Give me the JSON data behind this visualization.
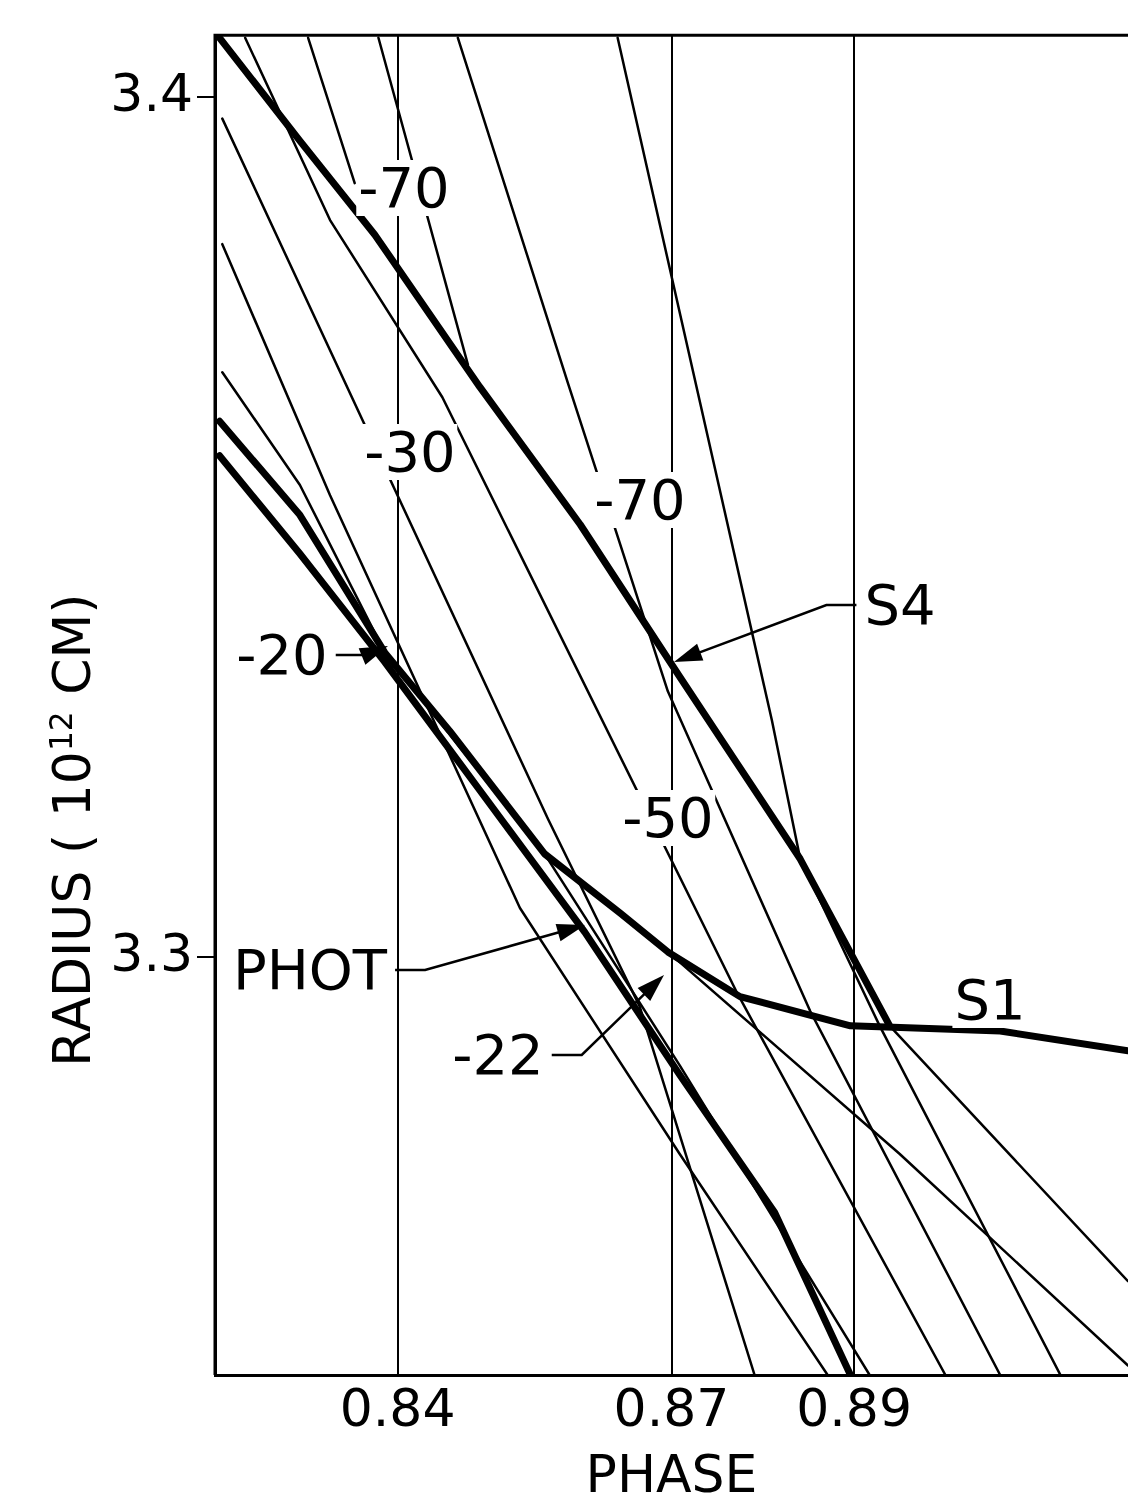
{
  "chart_data": {
    "type": "line",
    "xlabel": "PHASE",
    "ylabel": "RADIUS ( 10$^{12}$ CM)",
    "xlim": [
      0.82,
      0.92
    ],
    "ylim": [
      3.2514,
      3.4072
    ],
    "xticks": [
      0.84,
      0.87,
      0.89
    ],
    "yticks": [
      3.3,
      3.4
    ],
    "grid": "x",
    "marker": "none",
    "series": [
      {
        "color": "#000000",
        "x": [
          0.8205,
          0.8293,
          0.8375,
          0.849,
          0.86,
          0.8709,
          0.8841,
          0.8939
        ],
        "values": [
          3.4069,
          3.3949,
          3.384,
          3.3663,
          3.3503,
          3.3326,
          3.3114,
          3.292
        ]
      },
      {
        "color": "#000000",
        "x": [
          0.8205,
          0.8293,
          0.8386,
          0.8457,
          0.8561,
          0.8644,
          0.8696,
          0.8775,
          0.8896,
          0.906,
          0.92
        ],
        "values": [
          3.3623,
          3.3514,
          3.3354,
          3.3263,
          3.312,
          3.3051,
          3.3006,
          3.2954,
          3.292,
          3.2914,
          3.2891
        ]
      },
      {
        "color": "#000000",
        "x": [
          0.8205,
          0.8293,
          0.8386,
          0.849,
          0.8605,
          0.8709,
          0.8813,
          0.8896
        ],
        "values": [
          3.3583,
          3.3469,
          3.3343,
          3.3194,
          3.3029,
          3.2863,
          3.2703,
          3.2514
        ]
      },
      {
        "color": "#000000",
        "x": [
          0.8302,
          0.8353
        ],
        "values": [
          3.4069,
          3.39
        ]
      },
      {
        "color": "#000000",
        "x": [
          0.8379,
          0.8477
        ],
        "values": [
          3.4069,
          3.3689
        ]
      },
      {
        "color": "#000000",
        "x": [
          0.8208,
          0.8565,
          0.8665,
          0.8791
        ],
        "values": [
          3.3975,
          3.316,
          3.2943,
          3.2514
        ]
      },
      {
        "color": "#000000",
        "x": [
          0.8208,
          0.8326,
          0.8534,
          0.8709,
          0.8871
        ],
        "values": [
          3.3829,
          3.3537,
          3.3057,
          3.2771,
          3.2514
        ]
      },
      {
        "color": "#000000",
        "x": [
          0.8208,
          0.8293,
          0.8386,
          0.8561,
          0.8709,
          0.8917
        ],
        "values": [
          3.368,
          3.3549,
          3.3354,
          3.312,
          3.2874,
          3.2514
        ]
      },
      {
        "color": "#000000",
        "x": [
          0.8233,
          0.8326,
          0.8449,
          0.8772,
          0.9
        ],
        "values": [
          3.4069,
          3.3857,
          3.3651,
          3.2958,
          3.2514
        ]
      },
      {
        "color": "#000000",
        "x": [
          0.8466,
          0.8587,
          0.8696,
          0.8852,
          0.906
        ],
        "values": [
          3.4069,
          3.3666,
          3.3309,
          3.2937,
          3.2514
        ]
      },
      {
        "color": "#000000",
        "x": [
          0.8641,
          0.881,
          0.8841,
          0.8928,
          0.9126
        ],
        "values": [
          3.4069,
          3.3275,
          3.3114,
          3.292,
          3.2514
        ]
      },
      {
        "color": "#000000",
        "x": [
          0.8696,
          0.895,
          0.92
        ],
        "values": [
          3.3006,
          3.2771,
          3.2525
        ]
      },
      {
        "color": "#000000",
        "x": [
          0.8939,
          0.92
        ],
        "values": [
          3.292,
          3.2623
        ]
      }
    ],
    "annotations": [
      "-70",
      "-30",
      "-70",
      "-50",
      "S4",
      "S1",
      "PHOT",
      "-20",
      "-22"
    ]
  }
}
